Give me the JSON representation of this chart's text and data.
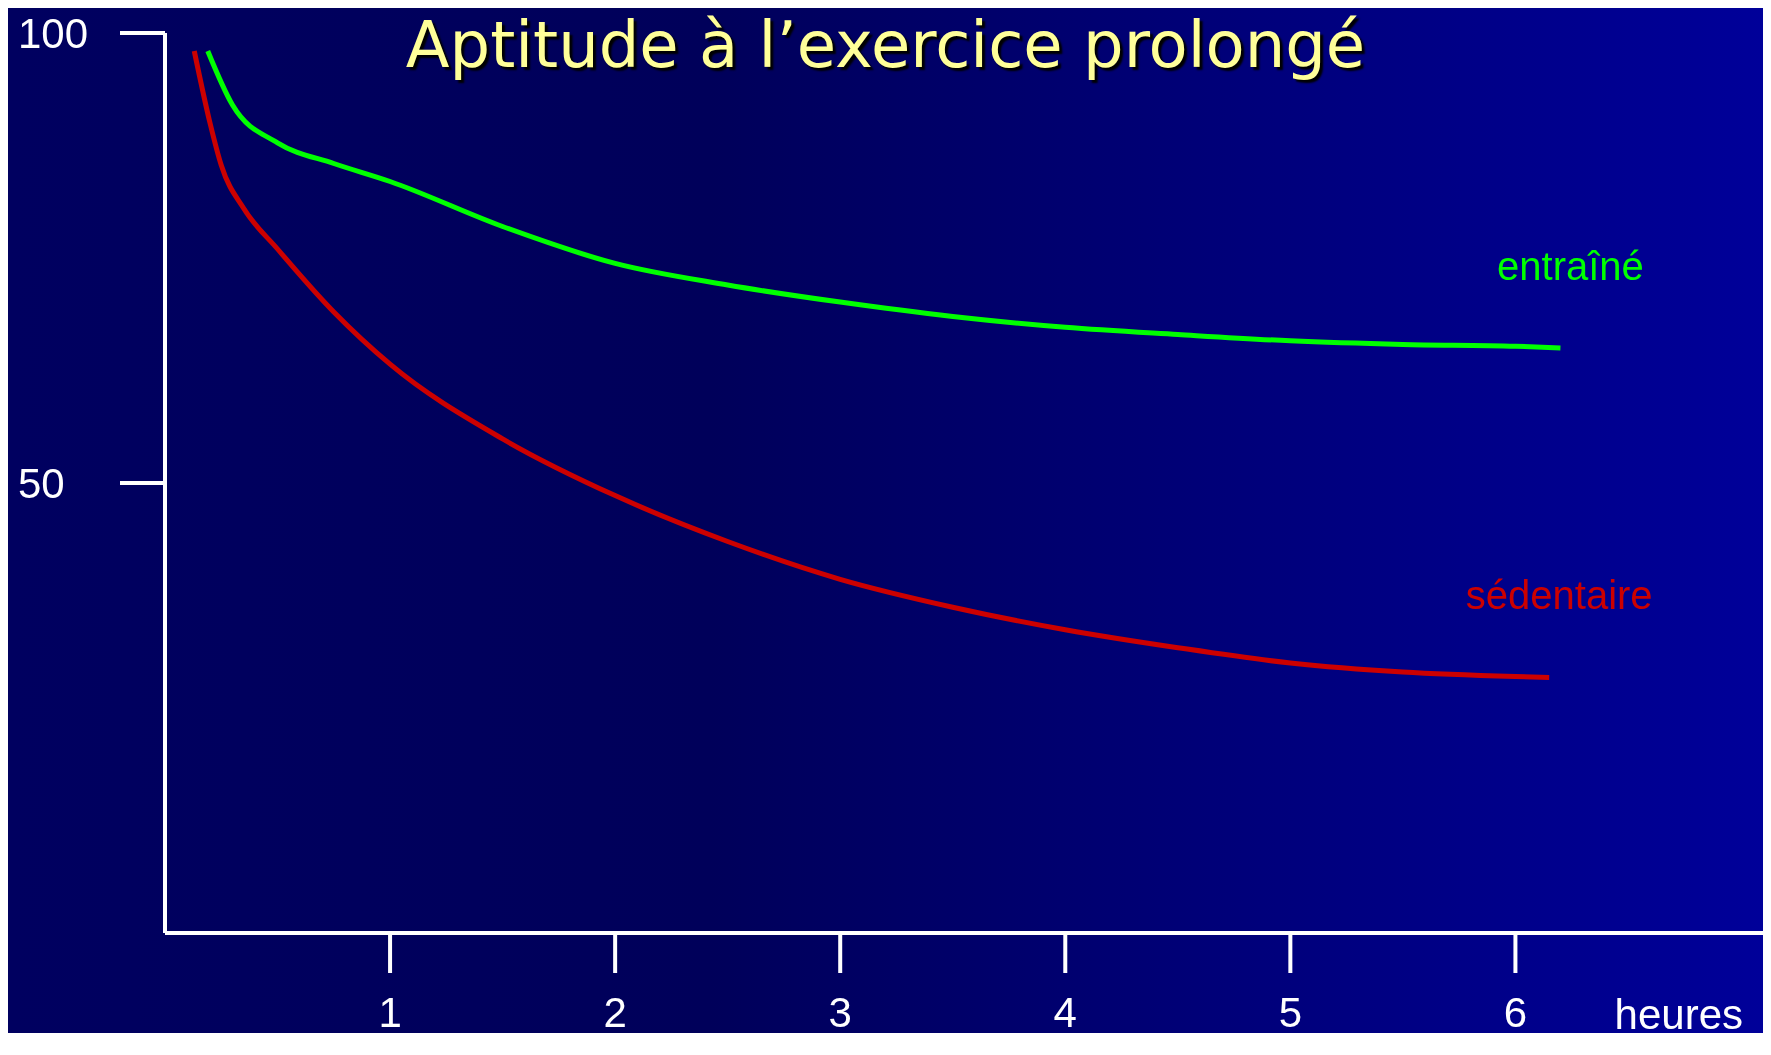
{
  "chart_data": {
    "type": "line",
    "title": "Aptitude à l’exercice prolongé",
    "xlabel": "heures",
    "xlim": [
      0,
      7.1
    ],
    "xticks": [
      1,
      2,
      3,
      4,
      5,
      6
    ],
    "ylim": [
      0,
      100
    ],
    "yticks": [
      50,
      100
    ],
    "grid": false,
    "legend": false,
    "marker": "none",
    "line_style": "solid",
    "series": [
      {
        "name": "entraîné",
        "color": "#00ff00",
        "x": [
          0.19,
          0.3,
          0.5,
          0.75,
          1,
          1.5,
          2,
          2.5,
          3,
          3.5,
          4,
          4.5,
          5,
          5.5,
          6,
          6.2
        ],
        "values": [
          98,
          92,
          87.8,
          85.5,
          83.5,
          78.5,
          74.4,
          72,
          70.1,
          68.5,
          67.3,
          66.5,
          65.8,
          65.4,
          65.2,
          65
        ]
      },
      {
        "name": "sédentaire",
        "color": "#cc0000",
        "x": [
          0.13,
          0.2,
          0.25,
          0.35,
          0.5,
          0.75,
          1,
          1.5,
          2,
          2.5,
          3,
          3.5,
          4,
          4.5,
          5,
          5.5,
          6,
          6.15
        ],
        "values": [
          98,
          90,
          85.3,
          80.5,
          76,
          69,
          63.2,
          54.9,
          48.6,
          43.5,
          39.3,
          36.2,
          33.7,
          31.7,
          30,
          29,
          28.5,
          28.4
        ]
      }
    ]
  }
}
